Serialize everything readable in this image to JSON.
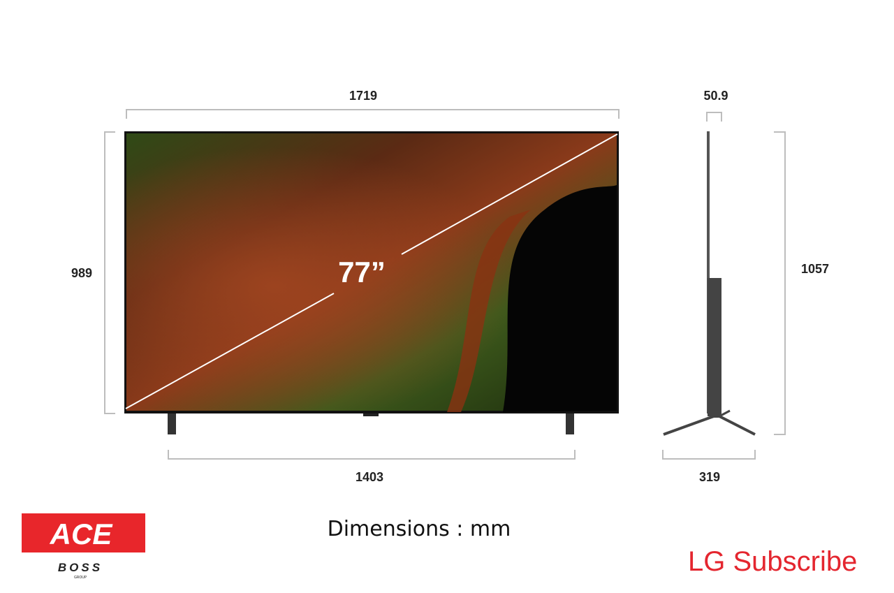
{
  "diagram": {
    "front": {
      "width": "1719",
      "height": "989",
      "stand_width": "1403",
      "diagonal": "77”"
    },
    "side": {
      "depth": "50.9",
      "height": "1057",
      "stand_depth": "319"
    },
    "note": "Dimensions : mm"
  },
  "logos": {
    "ace": "ACE",
    "boss": "BOSS",
    "group": "GROUP",
    "lg": "LG Subscribe"
  }
}
